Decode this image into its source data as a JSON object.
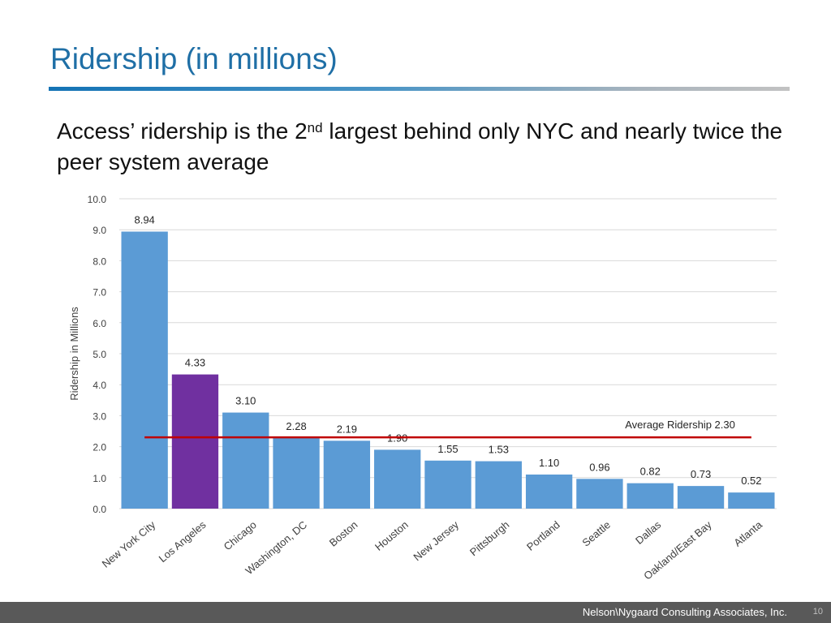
{
  "slide": {
    "title": "Ridership (in millions)",
    "subtitle_part1": "Access’ ridership is the 2",
    "subtitle_sup": "nd",
    "subtitle_part2": " largest behind only NYC and nearly twice the peer system average"
  },
  "footer": {
    "company": "Nelson\\Nygaard Consulting Associates, Inc.",
    "page_number": "10"
  },
  "colors": {
    "bar_default": "#5b9bd5",
    "bar_highlight": "#7030a0",
    "average_line": "#c00000",
    "title": "#1f6fa6"
  },
  "chart_data": {
    "type": "bar",
    "ylabel": "Ridership in Millions",
    "ylim": [
      0,
      10
    ],
    "yticks": [
      "0.0",
      "1.0",
      "2.0",
      "3.0",
      "4.0",
      "5.0",
      "6.0",
      "7.0",
      "8.0",
      "9.0",
      "10.0"
    ],
    "grid": true,
    "categories": [
      "New York City",
      "Los Angeles",
      "Chicago",
      "Washington, DC",
      "Boston",
      "Houston",
      "New Jersey",
      "Pittsburgh",
      "Portland",
      "Seattle",
      "Dallas",
      "Oakland/East Bay",
      "Atlanta"
    ],
    "values": [
      8.94,
      4.33,
      3.1,
      2.28,
      2.19,
      1.9,
      1.55,
      1.53,
      1.1,
      0.96,
      0.82,
      0.73,
      0.52
    ],
    "value_labels": [
      "8.94",
      "4.33",
      "3.10",
      "2.28",
      "2.19",
      "1.90",
      "1.55",
      "1.53",
      "1.10",
      "0.96",
      "0.82",
      "0.73",
      "0.52"
    ],
    "highlight_category": "Los Angeles",
    "average": {
      "value": 2.3,
      "label": "Average Ridership 2.30"
    }
  }
}
